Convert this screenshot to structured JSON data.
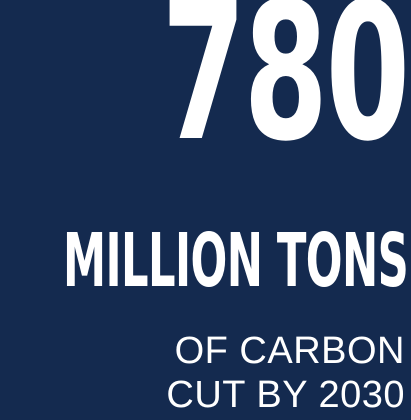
{
  "stat": {
    "number": "780",
    "unit": "MILLION TONS",
    "caption_line_1": "OF CARBON",
    "caption_line_2": "CUT BY 2030"
  },
  "colors": {
    "background": "#142a4f",
    "text": "#ffffff"
  }
}
